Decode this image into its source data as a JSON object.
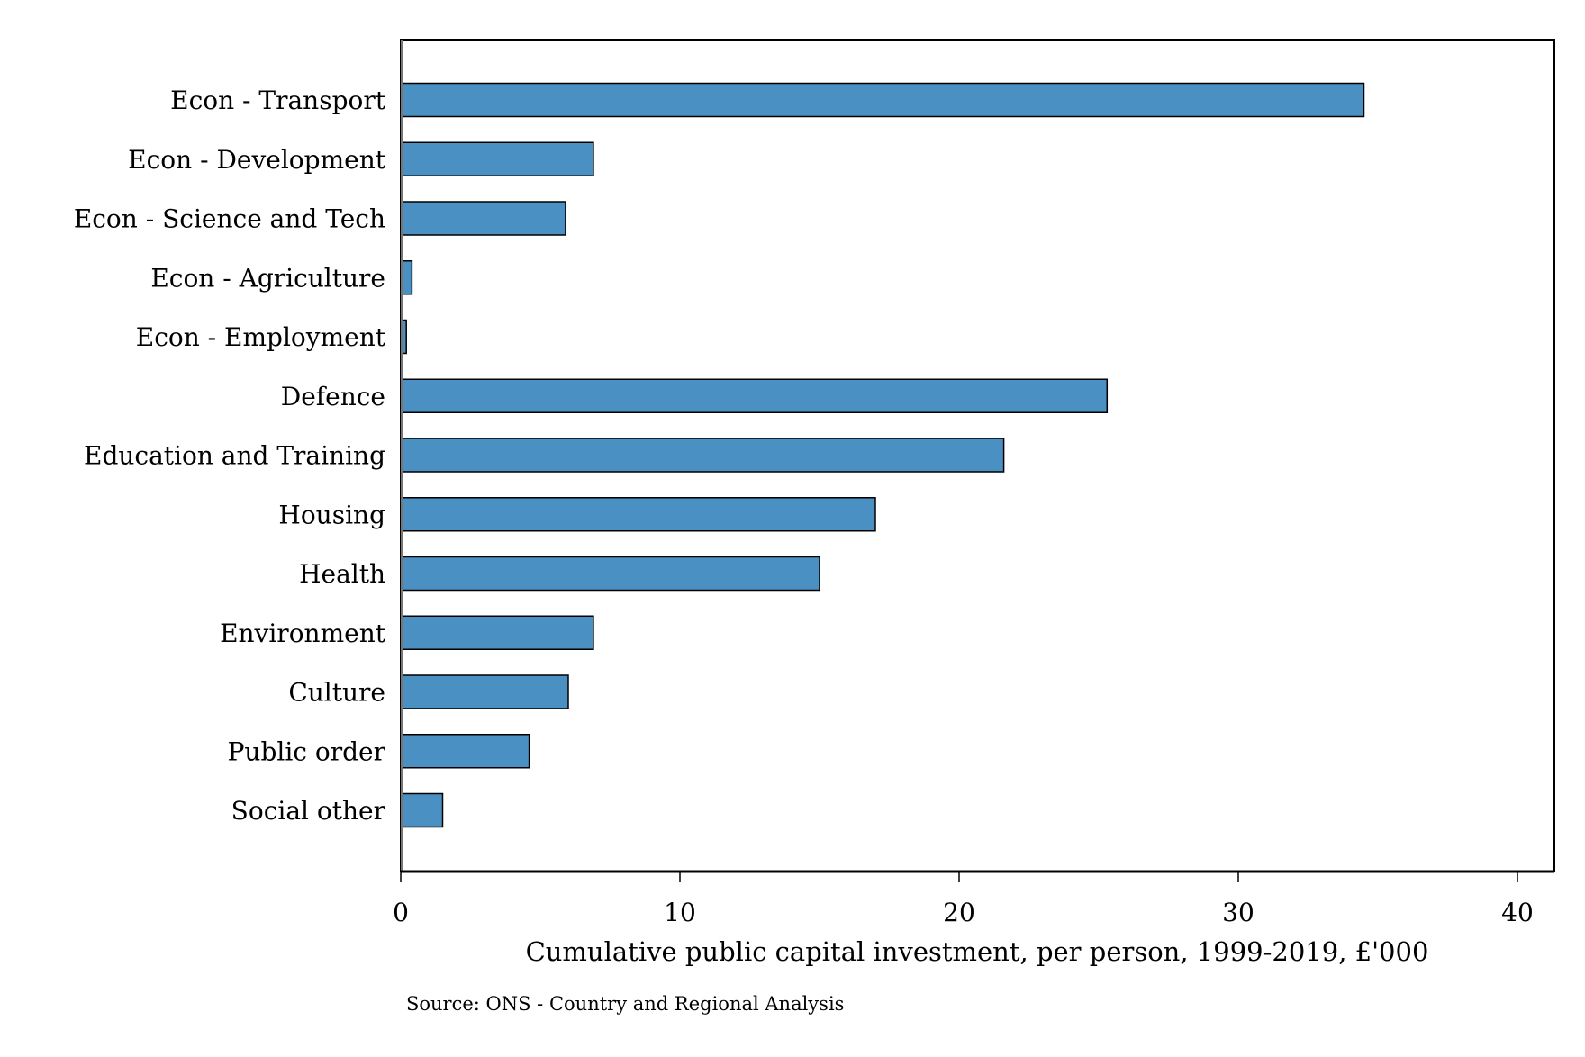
{
  "chart_data": {
    "type": "bar",
    "orientation": "horizontal",
    "categories": [
      "Econ - Transport",
      "Econ - Development",
      "Econ - Science and Tech",
      "Econ - Agriculture",
      "Econ - Employment",
      "Defence",
      "Education and Training",
      "Housing",
      "Health",
      "Environment",
      "Culture",
      "Public order",
      "Social other"
    ],
    "values": [
      34.5,
      6.9,
      5.9,
      0.4,
      0.2,
      25.3,
      21.6,
      17.0,
      15.0,
      6.9,
      6.0,
      4.6,
      1.5
    ],
    "xlabel": "Cumulative public capital investment, per person, 1999-2019, £'000",
    "ylabel": "",
    "xlim": [
      0,
      40
    ],
    "xticks": [
      "0",
      "10",
      "20",
      "30",
      "40"
    ],
    "grid": false,
    "bar_color": "#4a90c2",
    "note": "Source: ONS - Country and Regional Analysis"
  }
}
